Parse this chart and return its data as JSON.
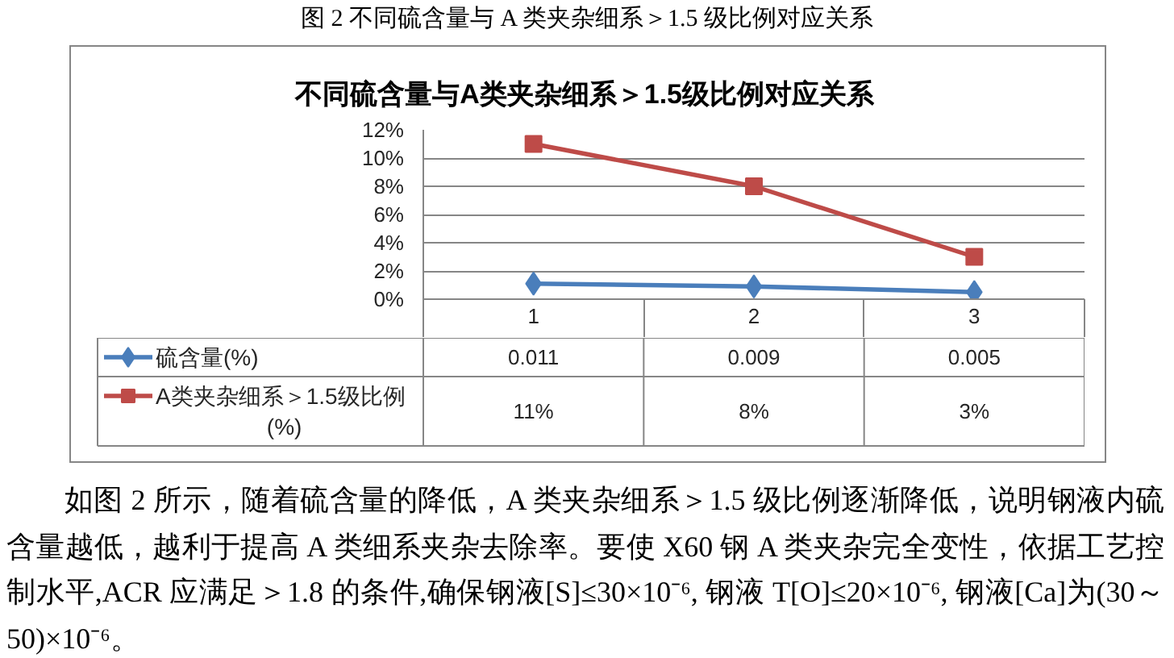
{
  "chart_data": {
    "type": "line",
    "title": "不同硫含量与A类夹杂细系＞1.5级比例对应关系",
    "annotations": [
      "图 2 不同硫含量与 A 类夹杂细系＞1.5 级比例对应关系",
      "如图 2 所示，随着硫含量的降低，A 类夹杂细系＞1.5 级比例逐渐降低，说明钢液内硫含量越低，越利于提高 A 类细系夹杂去除率。要使 X60 钢 A 类夹杂完全变性，依据工艺控制水平,ACR 应满足＞1.8 的条件,确保钢液[S]≤30×10⁻⁶, 钢液 T[O]≤20×10⁻⁶, 钢液[Ca]为(30～50)×10⁻⁶。"
    ],
    "categories": [
      "1",
      "2",
      "3"
    ],
    "series": [
      {
        "name": "硫含量(%)",
        "color": "#4a7ebb",
        "marker": "diamond",
        "values": [
          0.011,
          0.009,
          0.005
        ],
        "value_labels": [
          "0.011",
          "0.009",
          "0.005"
        ]
      },
      {
        "name": "A类夹杂细系＞1.5级比例(%)",
        "color": "#be4b48",
        "marker": "square",
        "values": [
          0.11,
          0.08,
          0.03
        ],
        "value_labels": [
          "11%",
          "8%",
          "3%"
        ]
      }
    ],
    "ylim": [
      0,
      0.12
    ],
    "yticks": [
      {
        "value": 0,
        "label": "0%"
      },
      {
        "value": 0.02,
        "label": "2%"
      },
      {
        "value": 0.04,
        "label": "4%"
      },
      {
        "value": 0.06,
        "label": "6%"
      },
      {
        "value": 0.08,
        "label": "8%"
      },
      {
        "value": 0.1,
        "label": "10%"
      },
      {
        "value": 0.12,
        "label": "12%"
      }
    ],
    "grid": "y",
    "legend": "bottom",
    "line_style": "solid"
  }
}
